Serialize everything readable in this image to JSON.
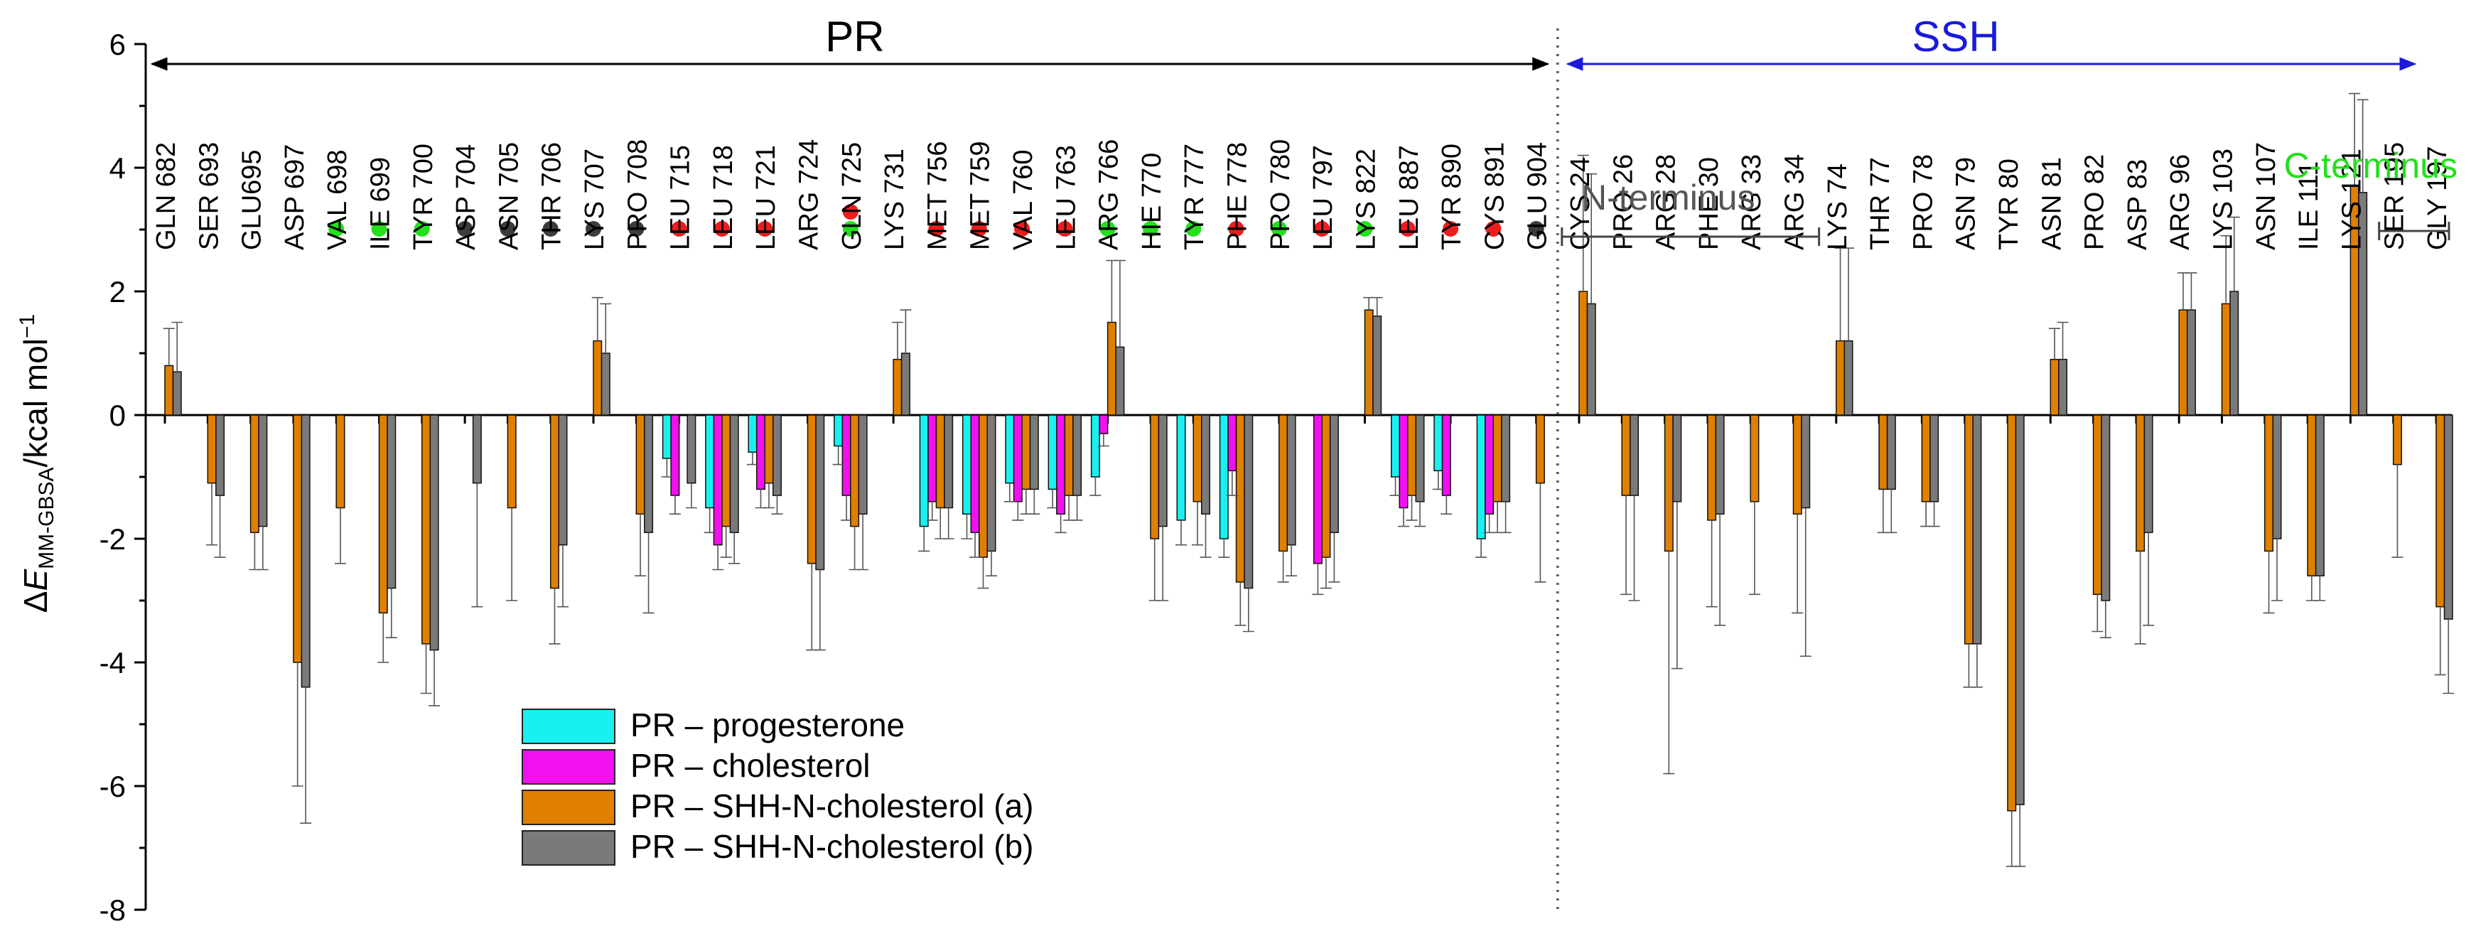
{
  "chart_data": {
    "type": "bar",
    "ylabel_delta": "Δ",
    "ylabel_E": "E",
    "ylabel_sub": "MM-GBSA",
    "ylabel_unit": "/kcal mol",
    "ylabel_sup": "−1",
    "ylim": [
      -8,
      6
    ],
    "yticks": [
      "6",
      "4",
      "2",
      "0",
      "-2",
      "-4",
      "-6",
      "-8"
    ],
    "regions": [
      {
        "label": "PR",
        "color": "#000000"
      },
      {
        "label": "SSH",
        "color": "#1a1adc"
      }
    ],
    "annotations": {
      "n_terminus": "N-terminus",
      "c_terminus": "C-terminus"
    },
    "dot_colors": {
      "green": "#22e01a",
      "red": "#ee1c1c",
      "dark": "#3c3c3c"
    },
    "series": [
      {
        "name": "PR – progesterone",
        "color": "#19f0f0"
      },
      {
        "name": "PR – cholesterol",
        "color": "#f010f0"
      },
      {
        "name": "PR – SHH-N-cholesterol (a)",
        "color": "#e07f00"
      },
      {
        "name": "PR – SHH-N-cholesterol (b)",
        "color": "#7a7a7a"
      }
    ],
    "residues": [
      {
        "label": "GLN 682",
        "dots": [],
        "v": [
          null,
          null,
          0.8,
          0.7
        ],
        "e": [
          null,
          null,
          0.6,
          0.8
        ]
      },
      {
        "label": "SER 693",
        "dots": [],
        "v": [
          null,
          null,
          -1.1,
          -1.3
        ],
        "e": [
          null,
          null,
          1.0,
          1.0
        ]
      },
      {
        "label": "GLU695",
        "dots": [],
        "v": [
          null,
          null,
          -1.9,
          -1.8
        ],
        "e": [
          null,
          null,
          0.6,
          0.7
        ]
      },
      {
        "label": "ASP 697",
        "dots": [],
        "v": [
          null,
          null,
          -4.0,
          -4.4
        ],
        "e": [
          null,
          null,
          2.0,
          2.2
        ]
      },
      {
        "label": "VAL 698",
        "dots": [
          "green"
        ],
        "v": [
          null,
          null,
          -1.5,
          null
        ],
        "e": [
          null,
          null,
          0.9,
          null
        ]
      },
      {
        "label": "ILE 699",
        "dots": [
          "green"
        ],
        "v": [
          null,
          null,
          -3.2,
          -2.8
        ],
        "e": [
          null,
          null,
          0.8,
          0.8
        ]
      },
      {
        "label": "TYR 700",
        "dots": [
          "green"
        ],
        "v": [
          null,
          null,
          -3.7,
          -3.8
        ],
        "e": [
          null,
          null,
          0.8,
          0.9
        ]
      },
      {
        "label": "ASP 704",
        "dots": [
          "dark"
        ],
        "v": [
          null,
          null,
          null,
          -1.1
        ],
        "e": [
          null,
          null,
          null,
          2.0
        ]
      },
      {
        "label": "ASN 705",
        "dots": [
          "dark"
        ],
        "v": [
          null,
          null,
          -1.5,
          null
        ],
        "e": [
          null,
          null,
          1.5,
          null
        ]
      },
      {
        "label": "THR 706",
        "dots": [
          "dark"
        ],
        "v": [
          null,
          null,
          -2.8,
          -2.1
        ],
        "e": [
          null,
          null,
          0.9,
          1.0
        ]
      },
      {
        "label": "LYS 707",
        "dots": [
          "dark"
        ],
        "v": [
          null,
          null,
          1.2,
          1.0
        ],
        "e": [
          null,
          null,
          0.7,
          0.8
        ]
      },
      {
        "label": "PRO 708",
        "dots": [
          "dark"
        ],
        "v": [
          null,
          null,
          -1.6,
          -1.9
        ],
        "e": [
          null,
          null,
          1.0,
          1.3
        ]
      },
      {
        "label": "LEU 715",
        "dots": [
          "red"
        ],
        "v": [
          -0.7,
          -1.3,
          null,
          -1.1
        ],
        "e": [
          0.3,
          0.3,
          null,
          0.4
        ]
      },
      {
        "label": "LEU 718",
        "dots": [
          "red"
        ],
        "v": [
          -1.5,
          -2.1,
          -1.8,
          -1.9
        ],
        "e": [
          0.4,
          0.4,
          0.5,
          0.5
        ]
      },
      {
        "label": "LEU 721",
        "dots": [
          "red"
        ],
        "v": [
          -0.6,
          -1.2,
          -1.1,
          -1.3
        ],
        "e": [
          0.2,
          0.3,
          0.4,
          0.3
        ]
      },
      {
        "label": "ARG 724",
        "dots": [],
        "v": [
          null,
          null,
          -2.4,
          -2.5
        ],
        "e": [
          null,
          null,
          1.4,
          1.3
        ]
      },
      {
        "label": "GLN 725",
        "dots": [
          "green",
          "red"
        ],
        "v": [
          -0.5,
          -1.3,
          -1.8,
          -1.6
        ],
        "e": [
          0.3,
          0.4,
          0.7,
          0.9
        ]
      },
      {
        "label": "LYS 731",
        "dots": [],
        "v": [
          null,
          null,
          0.9,
          1.0
        ],
        "e": [
          null,
          null,
          0.6,
          0.7
        ]
      },
      {
        "label": "MET 756",
        "dots": [
          "red"
        ],
        "v": [
          -1.8,
          -1.4,
          -1.5,
          -1.5
        ],
        "e": [
          0.4,
          0.3,
          0.5,
          0.5
        ]
      },
      {
        "label": "MET 759",
        "dots": [
          "red"
        ],
        "v": [
          -1.6,
          -1.9,
          -2.3,
          -2.2
        ],
        "e": [
          0.4,
          0.4,
          0.5,
          0.4
        ]
      },
      {
        "label": "VAL 760",
        "dots": [
          "red"
        ],
        "v": [
          -1.1,
          -1.4,
          -1.2,
          -1.2
        ],
        "e": [
          0.3,
          0.3,
          0.4,
          0.4
        ]
      },
      {
        "label": "LEU 763",
        "dots": [
          "red"
        ],
        "v": [
          -1.2,
          -1.6,
          -1.3,
          -1.3
        ],
        "e": [
          0.3,
          0.3,
          0.4,
          0.4
        ]
      },
      {
        "label": "ARG 766",
        "dots": [
          "green"
        ],
        "v": [
          -1.0,
          -0.3,
          1.5,
          1.1
        ],
        "e": [
          0.3,
          0.2,
          1.0,
          1.4
        ]
      },
      {
        "label": "HIE 770",
        "dots": [
          "green"
        ],
        "v": [
          null,
          null,
          -2.0,
          -1.8
        ],
        "e": [
          null,
          null,
          1.0,
          1.2
        ]
      },
      {
        "label": "TYR 777",
        "dots": [
          "green"
        ],
        "v": [
          -1.7,
          null,
          -1.4,
          -1.6
        ],
        "e": [
          0.4,
          null,
          0.7,
          0.7
        ]
      },
      {
        "label": "PHE 778",
        "dots": [
          "red"
        ],
        "v": [
          -2.0,
          -0.9,
          -2.7,
          -2.8
        ],
        "e": [
          0.3,
          0.4,
          0.7,
          0.7
        ]
      },
      {
        "label": "PRO 780",
        "dots": [
          "green"
        ],
        "v": [
          null,
          null,
          -2.2,
          -2.1
        ],
        "e": [
          null,
          null,
          0.5,
          0.5
        ]
      },
      {
        "label": "LEU 797",
        "dots": [
          "red"
        ],
        "v": [
          null,
          -2.4,
          -2.3,
          -1.9
        ],
        "e": [
          null,
          0.5,
          0.5,
          0.8
        ]
      },
      {
        "label": "LYS 822",
        "dots": [
          "green"
        ],
        "v": [
          null,
          null,
          1.7,
          1.6
        ],
        "e": [
          null,
          null,
          0.2,
          0.3
        ]
      },
      {
        "label": "LEU 887",
        "dots": [
          "red"
        ],
        "v": [
          -1.0,
          -1.5,
          -1.3,
          -1.4
        ],
        "e": [
          0.3,
          0.3,
          0.4,
          0.4
        ]
      },
      {
        "label": "TYR 890",
        "dots": [
          "red"
        ],
        "v": [
          -0.9,
          -1.3,
          null,
          null
        ],
        "e": [
          0.3,
          0.3,
          null,
          null
        ]
      },
      {
        "label": "CYS 891",
        "dots": [
          "red"
        ],
        "v": [
          -2.0,
          -1.6,
          -1.4,
          -1.4
        ],
        "e": [
          0.3,
          0.3,
          0.5,
          0.5
        ]
      },
      {
        "label": "GLU 904",
        "dots": [
          "dark"
        ],
        "v": [
          null,
          null,
          -1.1,
          null
        ],
        "e": [
          null,
          null,
          1.6,
          null
        ]
      },
      {
        "label": "CYS 24",
        "dots": [],
        "v": [
          null,
          null,
          2.0,
          1.8
        ],
        "e": [
          null,
          null,
          2.2,
          2.1
        ]
      },
      {
        "label": "PRO 26",
        "dots": [],
        "v": [
          null,
          null,
          -1.3,
          -1.3
        ],
        "e": [
          null,
          null,
          1.6,
          1.7
        ]
      },
      {
        "label": "ARG 28",
        "dots": [],
        "v": [
          null,
          null,
          -2.2,
          -1.4
        ],
        "e": [
          null,
          null,
          3.6,
          2.7
        ]
      },
      {
        "label": "PHE 30",
        "dots": [],
        "v": [
          null,
          null,
          -1.7,
          -1.6
        ],
        "e": [
          null,
          null,
          1.4,
          1.8
        ]
      },
      {
        "label": "ARG 33",
        "dots": [],
        "v": [
          null,
          null,
          -1.4,
          null
        ],
        "e": [
          null,
          null,
          1.5,
          null
        ]
      },
      {
        "label": "ARG 34",
        "dots": [],
        "v": [
          null,
          null,
          -1.6,
          -1.5
        ],
        "e": [
          null,
          null,
          1.6,
          2.4
        ]
      },
      {
        "label": "LYS 74",
        "dots": [],
        "v": [
          null,
          null,
          1.2,
          1.2
        ],
        "e": [
          null,
          null,
          1.5,
          1.5
        ]
      },
      {
        "label": "THR 77",
        "dots": [],
        "v": [
          null,
          null,
          -1.2,
          -1.2
        ],
        "e": [
          null,
          null,
          0.7,
          0.7
        ]
      },
      {
        "label": "PRO 78",
        "dots": [],
        "v": [
          null,
          null,
          -1.4,
          -1.4
        ],
        "e": [
          null,
          null,
          0.4,
          0.4
        ]
      },
      {
        "label": "ASN 79",
        "dots": [],
        "v": [
          null,
          null,
          -3.7,
          -3.7
        ],
        "e": [
          null,
          null,
          0.7,
          0.7
        ]
      },
      {
        "label": "TYR 80",
        "dots": [],
        "v": [
          null,
          null,
          -6.4,
          -6.3
        ],
        "e": [
          null,
          null,
          0.9,
          1.0
        ]
      },
      {
        "label": "ASN 81",
        "dots": [],
        "v": [
          null,
          null,
          0.9,
          0.9
        ],
        "e": [
          null,
          null,
          0.5,
          0.6
        ]
      },
      {
        "label": "PRO 82",
        "dots": [],
        "v": [
          null,
          null,
          -2.9,
          -3.0
        ],
        "e": [
          null,
          null,
          0.6,
          0.6
        ]
      },
      {
        "label": "ASP 83",
        "dots": [],
        "v": [
          null,
          null,
          -2.2,
          -1.9
        ],
        "e": [
          null,
          null,
          1.5,
          1.5
        ]
      },
      {
        "label": "ARG 96",
        "dots": [],
        "v": [
          null,
          null,
          1.7,
          1.7
        ],
        "e": [
          null,
          null,
          0.6,
          0.6
        ]
      },
      {
        "label": "LYS 103",
        "dots": [],
        "v": [
          null,
          null,
          1.8,
          2.0
        ],
        "e": [
          null,
          null,
          1.1,
          1.2
        ]
      },
      {
        "label": "ASN 107",
        "dots": [],
        "v": [
          null,
          null,
          -2.2,
          -2.0
        ],
        "e": [
          null,
          null,
          1.0,
          1.0
        ]
      },
      {
        "label": "ILE 111",
        "dots": [],
        "v": [
          null,
          null,
          -2.6,
          -2.6
        ],
        "e": [
          null,
          null,
          0.4,
          0.4
        ]
      },
      {
        "label": "LYS 121",
        "dots": [],
        "v": [
          null,
          null,
          3.7,
          3.6
        ],
        "e": [
          null,
          null,
          1.5,
          1.5
        ]
      },
      {
        "label": "SER 195",
        "dots": [],
        "v": [
          null,
          null,
          -0.8,
          null
        ],
        "e": [
          null,
          null,
          1.5,
          null
        ]
      },
      {
        "label": "GLY 197",
        "dots": [],
        "v": [
          null,
          null,
          -3.1,
          -3.3
        ],
        "e": [
          null,
          null,
          1.1,
          1.2
        ]
      }
    ]
  }
}
